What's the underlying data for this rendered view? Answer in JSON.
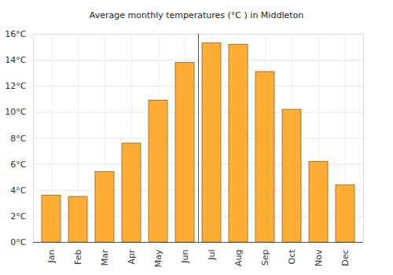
{
  "chart_data": {
    "type": "bar",
    "title": "Average monthly temperatures (°C ) in Middleton",
    "categories": [
      "Jan",
      "Feb",
      "Mar",
      "Apr",
      "May",
      "Jun",
      "Jul",
      "Aug",
      "Sep",
      "Oct",
      "Nov",
      "Dec"
    ],
    "values": [
      3.6,
      3.5,
      5.4,
      7.6,
      10.9,
      13.8,
      15.3,
      15.2,
      13.1,
      10.2,
      6.2,
      4.4
    ],
    "color": "#ffae35",
    "ylim": [
      0,
      16
    ],
    "yticks": [
      {
        "value": 0,
        "label": "0°C"
      },
      {
        "value": 2,
        "label": "2°C"
      },
      {
        "value": 4,
        "label": "4°C"
      },
      {
        "value": 6,
        "label": "6°C"
      },
      {
        "value": 8,
        "label": "8°C"
      },
      {
        "value": 10,
        "label": "10°C"
      },
      {
        "value": 12,
        "label": "12°C"
      },
      {
        "value": 14,
        "label": "14°C"
      },
      {
        "value": 16,
        "label": "16°C"
      }
    ],
    "grid": true
  }
}
